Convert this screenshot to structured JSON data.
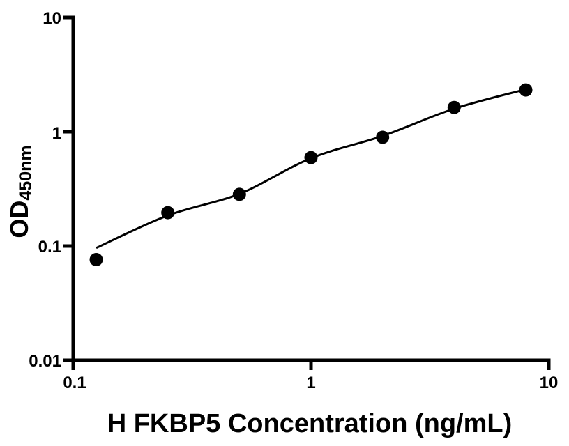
{
  "page": {
    "background_color": "#ffffff"
  },
  "chart_data": {
    "type": "scatter",
    "title": "",
    "xlabel": "H FKBP5 Concentration (ng/mL)",
    "ylabel": "OD",
    "ylabel_subscript": "450nm",
    "xscale": "log",
    "yscale": "log",
    "xlim": [
      0.1,
      10
    ],
    "ylim": [
      0.01,
      10
    ],
    "x_tick_values": [
      0.1,
      1,
      10
    ],
    "x_tick_labels": [
      "0.1",
      "1",
      "10"
    ],
    "y_tick_values": [
      0.01,
      0.1,
      1,
      10
    ],
    "y_tick_labels": [
      "0.01",
      "0.1",
      "1",
      "10"
    ],
    "grid": false,
    "legend": false,
    "axis_color": "#000000",
    "background_color": "#ffffff",
    "series": [
      {
        "name": "fit-curve",
        "type": "line",
        "color": "#000000",
        "x": [
          0.126,
          0.25,
          0.5,
          1,
          2,
          4,
          8
        ],
        "y": [
          0.097,
          0.185,
          0.286,
          0.586,
          0.918,
          1.59,
          2.35
        ]
      },
      {
        "name": "standard-points",
        "type": "scatter",
        "marker": "circle",
        "color": "#000000",
        "x": [
          0.125,
          0.25,
          0.5,
          1,
          2,
          4,
          8
        ],
        "y": [
          0.076,
          0.196,
          0.283,
          0.594,
          0.894,
          1.63,
          2.32
        ]
      }
    ]
  }
}
